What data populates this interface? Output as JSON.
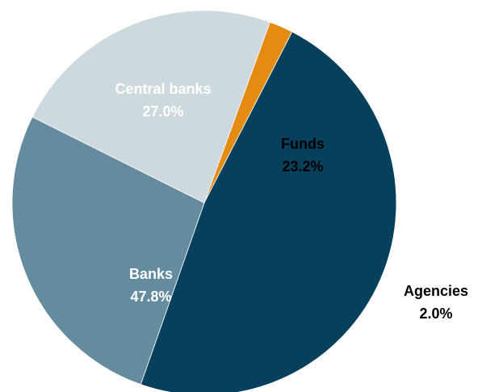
{
  "chart_data": {
    "type": "pie",
    "start_angle_deg": -63.5,
    "direction": "clockwise",
    "slices": [
      {
        "label": "Funds",
        "value": 23.2,
        "value_label": "23.2%",
        "color": "#cdd9df",
        "text_color": "#000000",
        "label_position": "inside"
      },
      {
        "label": "Agencies",
        "value": 2.0,
        "value_label": "2.0%",
        "color": "#e48c12",
        "text_color": "#000000",
        "label_position": "outside"
      },
      {
        "label": "Banks",
        "value": 47.8,
        "value_label": "47.8%",
        "color": "#06405c",
        "text_color": "#ffffff",
        "label_position": "inside"
      },
      {
        "label": "Central banks",
        "value": 27.0,
        "value_label": "27.0%",
        "color": "#658c9e",
        "text_color": "#ffffff",
        "label_position": "inside"
      }
    ]
  }
}
